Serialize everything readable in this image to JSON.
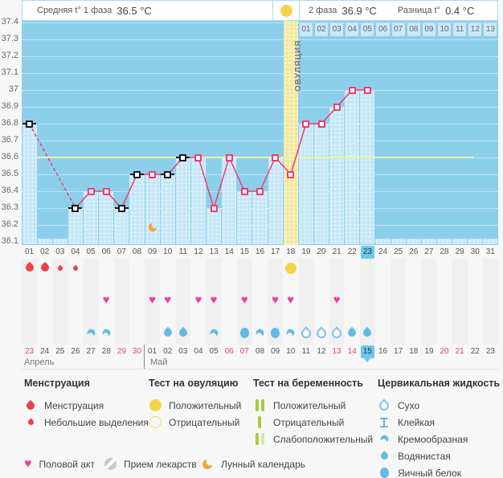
{
  "header": {
    "unit": "°C",
    "phase1_label": "Средняя t° 1 фаза",
    "phase1_value": "36.5 °C",
    "phase2_label": "2 фаза",
    "phase2_value": "36.9 °C",
    "diff_label": "Разница t°",
    "diff_value": "0.4 °C"
  },
  "chart_data": {
    "type": "line",
    "unit_label": "°C",
    "ylim": [
      36.1,
      37.4
    ],
    "yticks": [
      "37.4",
      "37.3",
      "37.2",
      "37.1",
      "37",
      "36.9",
      "36.8",
      "36.7",
      "36.6",
      "36.5",
      "36.4",
      "36.3",
      "36.2",
      "36.1"
    ],
    "x_days": [
      "01",
      "02",
      "03",
      "04",
      "05",
      "06",
      "07",
      "08",
      "09",
      "10",
      "11",
      "12",
      "13",
      "14",
      "15",
      "16",
      "17",
      "18",
      "19",
      "20",
      "21",
      "22",
      "23",
      "24",
      "25",
      "26",
      "27",
      "28",
      "29",
      "30",
      "31"
    ],
    "temperatures": [
      36.8,
      null,
      null,
      36.3,
      36.4,
      36.4,
      36.3,
      36.5,
      36.5,
      36.5,
      36.6,
      36.6,
      36.3,
      36.6,
      36.4,
      36.4,
      36.6,
      36.5,
      36.8,
      36.8,
      36.9,
      37.0,
      37.0,
      null,
      null,
      null,
      null,
      null,
      null,
      null,
      null
    ],
    "dashed_missing_segment": [
      1,
      4
    ],
    "marker_black_days": [
      1,
      4,
      7,
      8,
      10,
      11
    ],
    "coverline_temp": 36.6,
    "ovulation_day": 18,
    "ovulation_column_label": "ОВУЛЯЦИЯ",
    "second_phase_day_labels": [
      "01",
      "02",
      "03",
      "04",
      "05",
      "06",
      "07",
      "08",
      "09",
      "10",
      "11",
      "12",
      "13"
    ],
    "current_cycle_day": 23,
    "lunar_event_day": 9
  },
  "rows": {
    "cycle_days": [
      "01",
      "02",
      "03",
      "04",
      "05",
      "06",
      "07",
      "08",
      "09",
      "10",
      "11",
      "12",
      "13",
      "14",
      "15",
      "16",
      "17",
      "18",
      "19",
      "20",
      "21",
      "22",
      "23",
      "24",
      "25",
      "26",
      "27",
      "28",
      "29",
      "30",
      "31"
    ],
    "menstruation": [
      {
        "day": 1,
        "size": "large"
      },
      {
        "day": 2,
        "size": "large"
      },
      {
        "day": 3,
        "size": "small"
      },
      {
        "day": 4,
        "size": "small"
      }
    ],
    "ovulation_test": {
      "day": 18,
      "result": "positive"
    },
    "intercourse_days": [
      6,
      9,
      10,
      12,
      13,
      15,
      17,
      18,
      21
    ],
    "cervical": [
      {
        "day": 5,
        "type": "creamy"
      },
      {
        "day": 6,
        "type": "creamy"
      },
      {
        "day": 10,
        "type": "watery"
      },
      {
        "day": 11,
        "type": "watery"
      },
      {
        "day": 13,
        "type": "creamy"
      },
      {
        "day": 15,
        "type": "eggwhite"
      },
      {
        "day": 16,
        "type": "creamy"
      },
      {
        "day": 17,
        "type": "eggwhite"
      },
      {
        "day": 18,
        "type": "creamy"
      },
      {
        "day": 19,
        "type": "dry"
      },
      {
        "day": 20,
        "type": "dry"
      },
      {
        "day": 21,
        "type": "dry"
      },
      {
        "day": 22,
        "type": "watery"
      },
      {
        "day": 23,
        "type": "watery"
      }
    ],
    "dates": [
      {
        "label": "23",
        "weekend": true
      },
      {
        "label": "24"
      },
      {
        "label": "25"
      },
      {
        "label": "26"
      },
      {
        "label": "27"
      },
      {
        "label": "28"
      },
      {
        "label": "29",
        "weekend": true
      },
      {
        "label": "30",
        "weekend": true
      },
      {
        "label": "01"
      },
      {
        "label": "02"
      },
      {
        "label": "03"
      },
      {
        "label": "04"
      },
      {
        "label": "05"
      },
      {
        "label": "06",
        "weekend": true
      },
      {
        "label": "07",
        "weekend": true
      },
      {
        "label": "08"
      },
      {
        "label": "09"
      },
      {
        "label": "10"
      },
      {
        "label": "11"
      },
      {
        "label": "12"
      },
      {
        "label": "13",
        "weekend": true
      },
      {
        "label": "14",
        "weekend": true
      },
      {
        "label": "15",
        "today": true
      },
      {
        "label": "16"
      },
      {
        "label": "17"
      },
      {
        "label": "18"
      },
      {
        "label": "19"
      },
      {
        "label": "20",
        "weekend": true
      },
      {
        "label": "21",
        "weekend": true
      },
      {
        "label": "22"
      },
      {
        "label": "23"
      }
    ],
    "months": [
      {
        "label": "Апрель"
      },
      {
        "label": "Май"
      }
    ]
  },
  "legend": {
    "menstruation": {
      "title": "Менструация",
      "items": [
        {
          "label": "Менструация"
        },
        {
          "label": "Небольшие выделения"
        }
      ]
    },
    "ovulation_test": {
      "title": "Тест на овуляцию",
      "items": [
        {
          "label": "Положительный"
        },
        {
          "label": "Отрицательный"
        }
      ]
    },
    "pregnancy_test": {
      "title": "Тест на беременность",
      "items": [
        {
          "label": "Положительный"
        },
        {
          "label": "Отрицательный"
        },
        {
          "label": "Слабоположительный"
        }
      ]
    },
    "cervical_fluid": {
      "title": "Цервикальная жидкость",
      "items": [
        {
          "label": "Сухо"
        },
        {
          "label": "Клейкая"
        },
        {
          "label": "Кремообразная"
        },
        {
          "label": "Водянистая"
        },
        {
          "label": "Яичный белок"
        }
      ]
    },
    "bottom": [
      {
        "label": "Половой акт"
      },
      {
        "label": "Прием лекарств"
      },
      {
        "label": "Лунный календарь"
      }
    ]
  },
  "icons": {
    "heart": "♥"
  },
  "colors": {
    "plot_bg": "#8ccfeb",
    "day_bar": "#c6e7f7",
    "ovulation_column": "#f1e9a2",
    "line": "#ee3d6e",
    "coverline": "#f3f0a6",
    "marker_black": "#1a1a1a",
    "highlight_day": "#6ac9ef",
    "weekend_text": "#ee3d6e",
    "menses_red": "#ef4147",
    "heart_pink": "#f23e9d",
    "cervical_blue": "#64b9e6",
    "ovulation_test_yellow": "#f6d34c",
    "pregnancy_test_green": "#a9ca3f",
    "pregnancy_test_pale": "#d6e6a8",
    "moon_orange": "#f3a43c",
    "pill_gray": "#c9c9c9"
  }
}
